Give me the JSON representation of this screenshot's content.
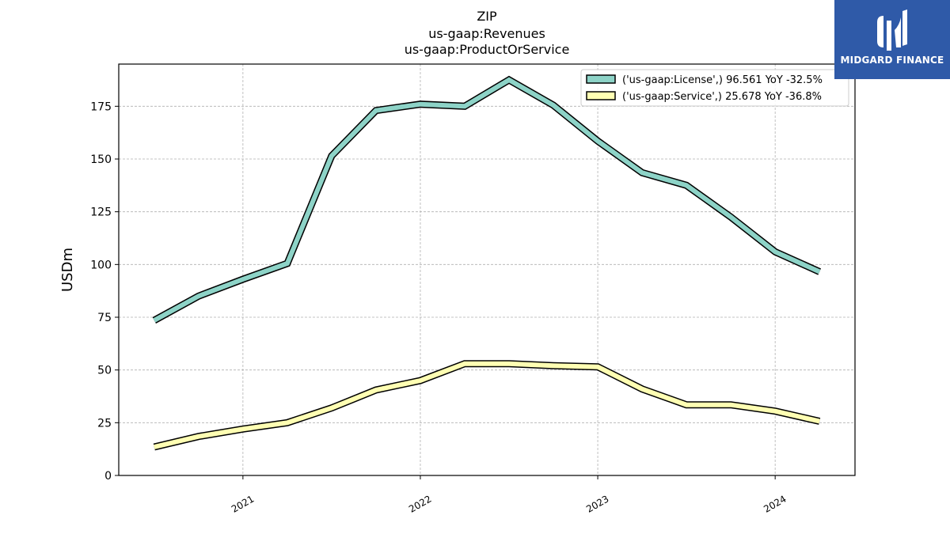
{
  "chart_data": {
    "type": "line",
    "title": [
      "ZIP",
      "us-gaap:Revenues",
      "us-gaap:ProductOrService"
    ],
    "ylabel": "USDm",
    "xlabel": "",
    "ylim": [
      0,
      195
    ],
    "xlim": [
      2020.3,
      2024.45
    ],
    "yticks": [
      0,
      25,
      50,
      75,
      100,
      125,
      150,
      175
    ],
    "xticks": [
      2021,
      2022,
      2023,
      2024
    ],
    "xtick_labels": [
      "2021",
      "2022",
      "2023",
      "2024"
    ],
    "grid": true,
    "legend_position": "top-right",
    "x": [
      "2020-07",
      "2020-10",
      "2021-01",
      "2021-04",
      "2021-07",
      "2021-10",
      "2022-01",
      "2022-04",
      "2022-07",
      "2022-10",
      "2023-01",
      "2023-04",
      "2023-07",
      "2023-10",
      "2024-01",
      "2024-04"
    ],
    "series": [
      {
        "name": "('us-gaap:License',) 96.561 YoY -32.5%",
        "color": "#8dd3c7",
        "values": [
          73.5,
          85.0,
          93.0,
          100.5,
          151.5,
          173.0,
          176.0,
          175.0,
          187.5,
          175.5,
          158.5,
          143.5,
          137.5,
          122.5,
          106.0,
          96.561
        ]
      },
      {
        "name": "('us-gaap:Service',) 25.678 YoY -36.8%",
        "color": "#ffffb3",
        "values": [
          13.5,
          18.5,
          22.0,
          25.0,
          32.0,
          40.5,
          45.0,
          53.0,
          53.0,
          52.0,
          51.5,
          41.0,
          33.5,
          33.5,
          30.5,
          25.678
        ]
      }
    ]
  },
  "logo": {
    "text": "MIDGARD FINANCE",
    "color": "#2f5aa8"
  }
}
